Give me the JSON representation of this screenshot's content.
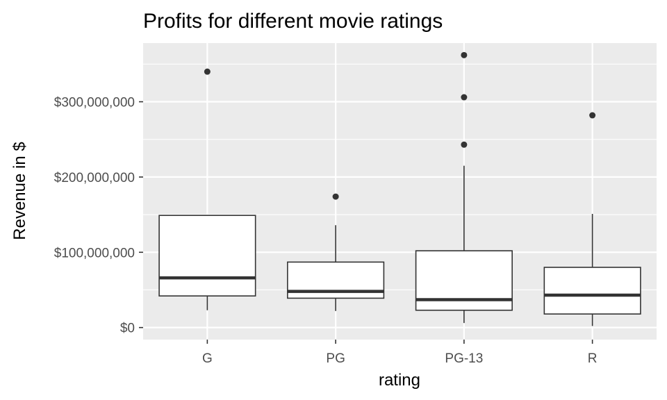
{
  "chart_data": {
    "type": "boxplot",
    "title": "Profits for different movie ratings",
    "xlabel": "rating",
    "ylabel": "Revenue in $",
    "categories": [
      "G",
      "PG",
      "PG-13",
      "R"
    ],
    "boxes": [
      {
        "category": "G",
        "whisker_low": 23000000,
        "q1": 42000000,
        "median": 66000000,
        "q3": 149000000,
        "whisker_high": 149000000,
        "outliers": [
          340000000
        ]
      },
      {
        "category": "PG",
        "whisker_low": 22000000,
        "q1": 39000000,
        "median": 48000000,
        "q3": 87000000,
        "whisker_high": 136000000,
        "outliers": [
          174000000
        ]
      },
      {
        "category": "PG-13",
        "whisker_low": 6000000,
        "q1": 23000000,
        "median": 37000000,
        "q3": 102000000,
        "whisker_high": 215000000,
        "outliers": [
          243000000,
          306000000,
          362000000
        ]
      },
      {
        "category": "R",
        "whisker_low": 2000000,
        "q1": 18000000,
        "median": 43000000,
        "q3": 80000000,
        "whisker_high": 151000000,
        "outliers": [
          282000000
        ]
      }
    ],
    "y_ticks": [
      0,
      100000000,
      200000000,
      300000000
    ],
    "y_tick_labels": [
      "$0",
      "$100,000,000",
      "$200,000,000",
      "$300,000,000"
    ],
    "ylim": [
      -16000000,
      378000000
    ],
    "grid": true,
    "legend": "none",
    "colors": {
      "panel_background": "#ebebeb",
      "grid": "#ffffff",
      "box_fill": "#ffffff",
      "box_stroke": "#333333",
      "outlier": "#333333"
    }
  }
}
